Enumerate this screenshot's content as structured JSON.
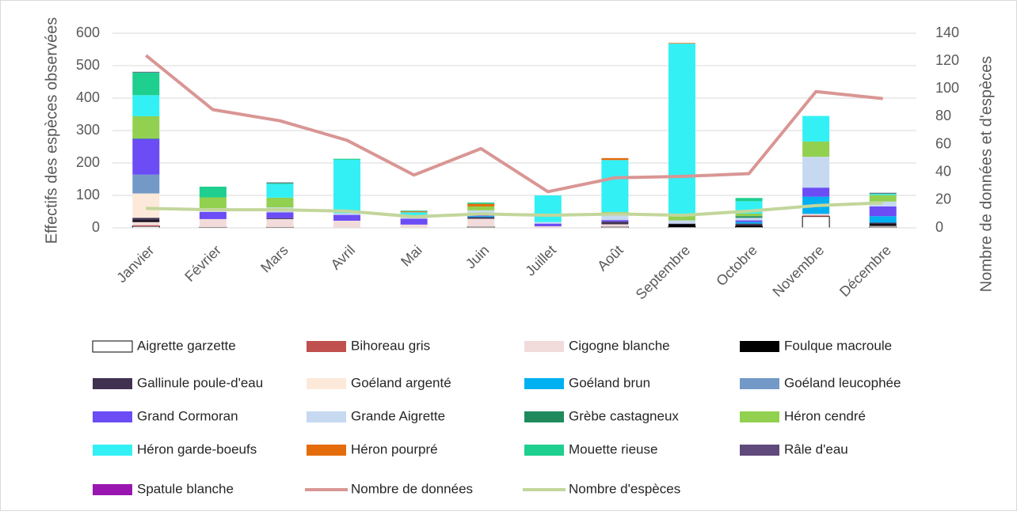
{
  "chart_data": {
    "type": "bar",
    "categories": [
      "Janvier",
      "Février",
      "Mars",
      "Avril",
      "Mai",
      "Juin",
      "Juillet",
      "Août",
      "Septembre",
      "Octobre",
      "Novembre",
      "Décembre"
    ],
    "y_label": "Effectifs des espèces observées",
    "y2_label": "Nombre de données et d'espèces",
    "ylim": [
      0,
      600
    ],
    "yticks": [
      0,
      100,
      200,
      300,
      400,
      500,
      600
    ],
    "y2lim": [
      0,
      140
    ],
    "y2ticks": [
      0,
      20,
      40,
      60,
      80,
      100,
      120,
      140
    ],
    "grid": true,
    "series": [
      {
        "name": "Aigrette garzette",
        "color": "#ffffff",
        "values": [
          5,
          2,
          2,
          0,
          0,
          3,
          0,
          3,
          3,
          3,
          35,
          3
        ]
      },
      {
        "name": "Bihoreau gris",
        "color": "#c0504d",
        "values": [
          3,
          0,
          0,
          0,
          0,
          0,
          0,
          0,
          0,
          0,
          3,
          0
        ]
      },
      {
        "name": "Cigogne blanche",
        "color": "#f2dcdb",
        "values": [
          10,
          25,
          25,
          22,
          10,
          25,
          5,
          8,
          0,
          0,
          5,
          3
        ]
      },
      {
        "name": "Foulque macroule",
        "color": "#000000",
        "values": [
          5,
          0,
          0,
          0,
          0,
          0,
          0,
          0,
          8,
          5,
          0,
          5
        ]
      },
      {
        "name": "Gallinule poule-d'eau",
        "color": "#403151",
        "values": [
          8,
          0,
          3,
          0,
          0,
          5,
          0,
          8,
          2,
          5,
          0,
          5
        ]
      },
      {
        "name": "Goéland argenté",
        "color": "#fde9d9",
        "values": [
          75,
          0,
          0,
          0,
          0,
          0,
          0,
          0,
          0,
          0,
          0,
          0
        ]
      },
      {
        "name": "Goéland brun",
        "color": "#00b0f0",
        "values": [
          0,
          0,
          0,
          0,
          0,
          3,
          0,
          0,
          0,
          5,
          53,
          20
        ]
      },
      {
        "name": "Goéland leucophée",
        "color": "#7399c6",
        "values": [
          58,
          0,
          0,
          0,
          0,
          0,
          0,
          0,
          0,
          0,
          0,
          0
        ]
      },
      {
        "name": "Grand Cormoran",
        "color": "#6b4cf5",
        "values": [
          110,
          22,
          18,
          18,
          18,
          8,
          8,
          5,
          0,
          5,
          28,
          30
        ]
      },
      {
        "name": "Grande Aigrette",
        "color": "#c6d9f1",
        "values": [
          0,
          12,
          15,
          5,
          10,
          10,
          5,
          20,
          10,
          8,
          95,
          15
        ]
      },
      {
        "name": "Grèbe castagneux",
        "color": "#1f8a5c",
        "values": [
          2,
          0,
          0,
          0,
          0,
          0,
          0,
          0,
          0,
          5,
          0,
          0
        ]
      },
      {
        "name": "Héron cendré",
        "color": "#92d050",
        "values": [
          68,
          33,
          30,
          0,
          0,
          12,
          0,
          5,
          15,
          8,
          47,
          20
        ]
      },
      {
        "name": "Héron garde-boeufs",
        "color": "#33f0f5",
        "values": [
          65,
          0,
          42,
          165,
          10,
          0,
          82,
          160,
          530,
          38,
          79,
          3
        ]
      },
      {
        "name": "Héron pourpré",
        "color": "#e46c0a",
        "values": [
          0,
          0,
          0,
          0,
          3,
          8,
          0,
          6,
          2,
          0,
          0,
          0
        ]
      },
      {
        "name": "Mouette rieuse",
        "color": "#1ecf8f",
        "values": [
          70,
          33,
          3,
          3,
          2,
          4,
          0,
          0,
          0,
          10,
          0,
          2
        ]
      },
      {
        "name": "Râle d'eau",
        "color": "#604a7b",
        "values": [
          2,
          0,
          2,
          0,
          0,
          0,
          0,
          0,
          0,
          0,
          0,
          2
        ]
      },
      {
        "name": "Spatule blanche",
        "color": "#9a16b0",
        "values": [
          0,
          0,
          0,
          0,
          0,
          0,
          0,
          0,
          0,
          0,
          0,
          0
        ]
      },
      {
        "name": "Nombre de données",
        "color": "#d99694",
        "type": "line",
        "axis": "y2",
        "values": [
          124,
          85,
          77,
          63,
          38,
          57,
          26,
          36,
          37,
          39,
          98,
          93
        ]
      },
      {
        "name": "Nombre d'espèces",
        "color": "#c3d69b",
        "type": "line",
        "axis": "y2",
        "values": [
          14,
          13,
          13,
          12,
          8,
          10,
          9,
          10,
          9,
          12,
          16,
          18
        ]
      }
    ]
  }
}
